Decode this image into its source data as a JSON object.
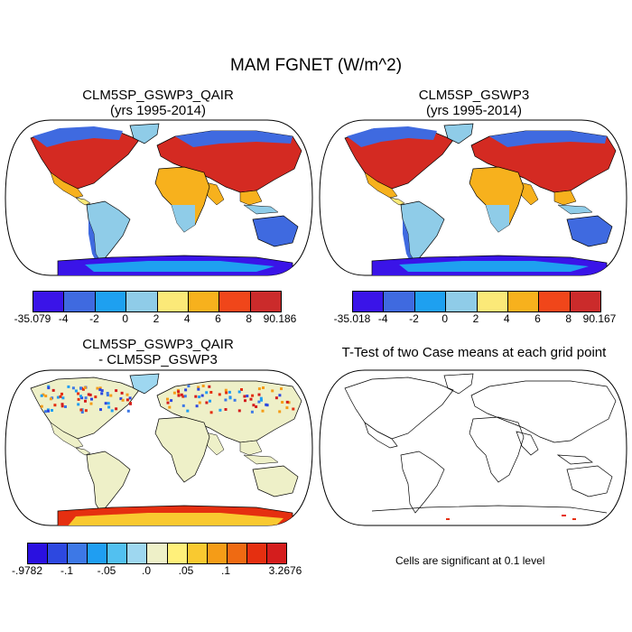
{
  "title": "MAM FGNET (W/m^2)",
  "panels": {
    "p1": {
      "line1": "CLM5SP_GSWP3_QAIR",
      "line2": "(yrs 1995-2014)"
    },
    "p2": {
      "line1": "CLM5SP_GSWP3",
      "line2": "(yrs 1995-2014)"
    },
    "p3": {
      "line1": "CLM5SP_GSWP3_QAIR",
      "line2": "- CLM5SP_GSWP3"
    },
    "p4": {
      "line1": "T-Test of two Case means at each grid point"
    }
  },
  "colorbars": {
    "top_left": {
      "colors": [
        "#3a14e8",
        "#3f6ae0",
        "#1ea0f0",
        "#8fcce8",
        "#fbe978",
        "#f7b11d",
        "#f0461a",
        "#cb2b2b"
      ],
      "labels": [
        "-35.079",
        "-4",
        "-2",
        "0",
        "2",
        "4",
        "6",
        "8",
        "90.186"
      ]
    },
    "top_right": {
      "colors": [
        "#3a14e8",
        "#3f6ae0",
        "#1ea0f0",
        "#8fcce8",
        "#fbe978",
        "#f7b11d",
        "#f0461a",
        "#cb2b2b"
      ],
      "labels": [
        "-35.018",
        "-4",
        "-2",
        "0",
        "2",
        "4",
        "6",
        "8",
        "90.167"
      ]
    },
    "bottom_left": {
      "colors": [
        "#2a10e0",
        "#2d48e0",
        "#3d78e6",
        "#1f9ef2",
        "#52c0f0",
        "#9ed7f0",
        "#eef0c8",
        "#fff07a",
        "#f9c930",
        "#f59c17",
        "#ef6a12",
        "#e52f10",
        "#d41d1d"
      ],
      "labels": [
        "-.9782",
        "-.1",
        "-.05",
        ".0",
        ".05",
        ".1",
        "3.2676"
      ]
    }
  },
  "note": "Cells are significant at 0.1 level"
}
